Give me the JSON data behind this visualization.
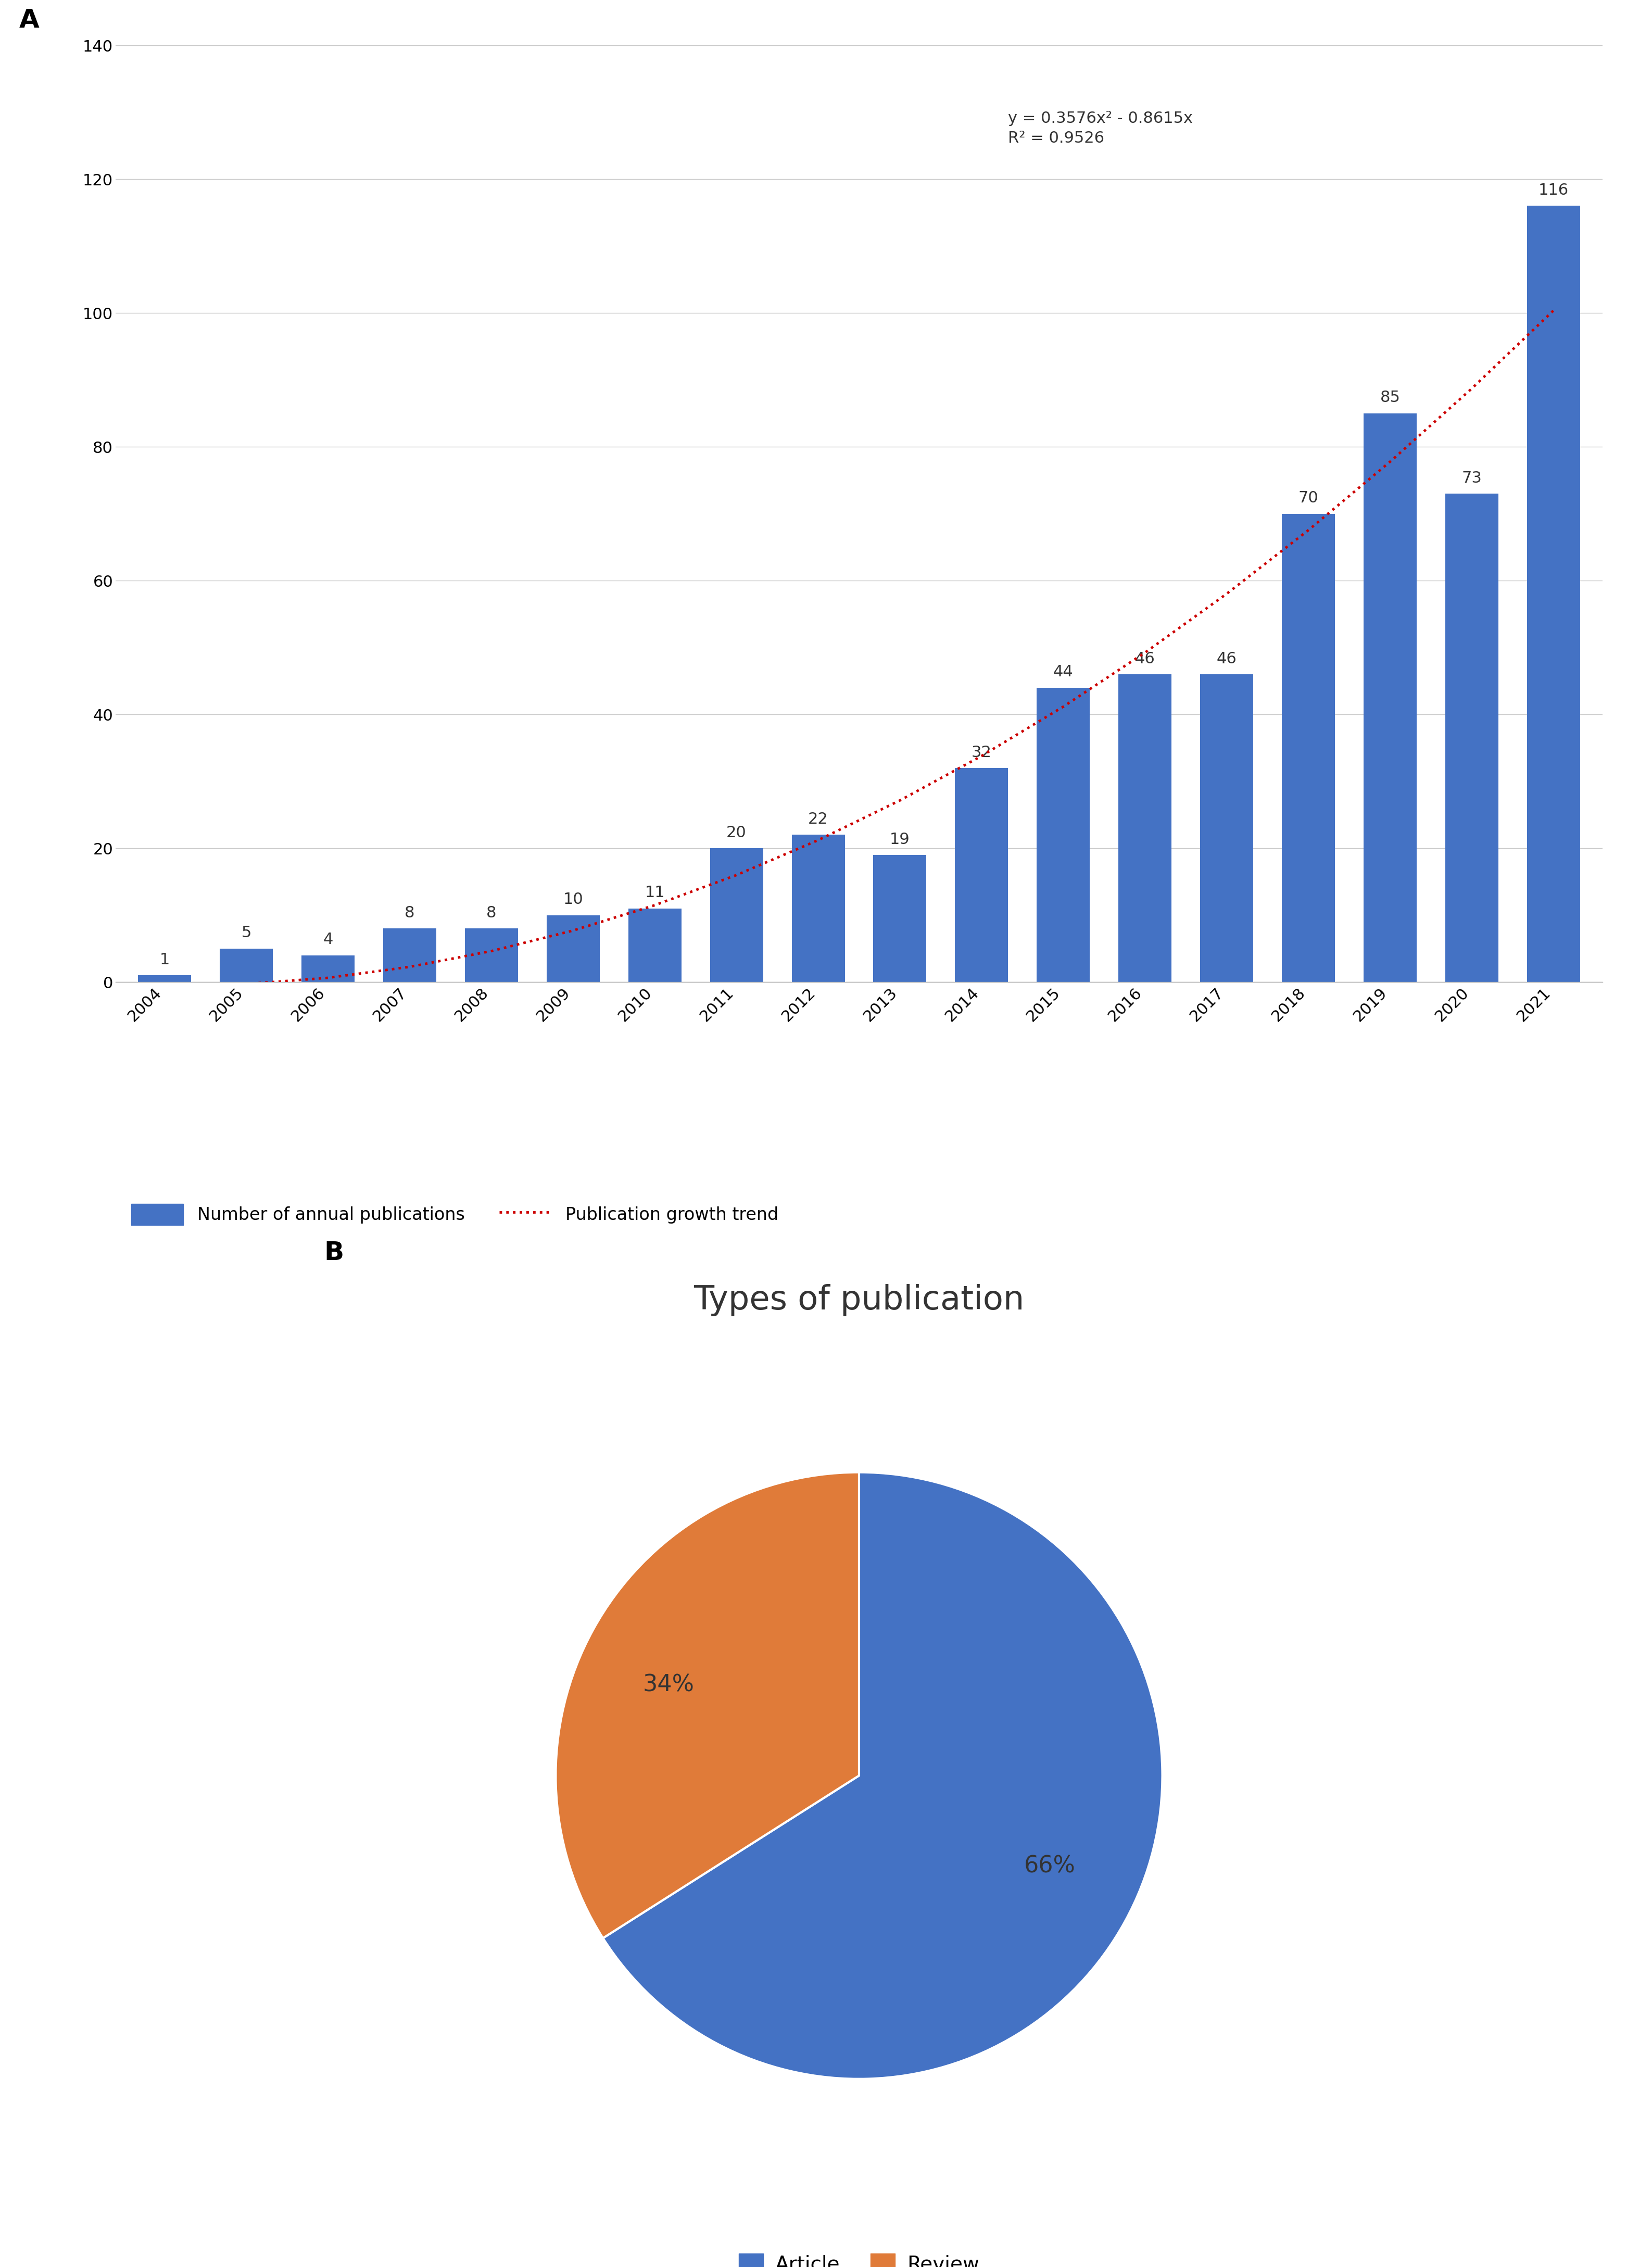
{
  "years": [
    2004,
    2005,
    2006,
    2007,
    2008,
    2009,
    2010,
    2011,
    2012,
    2013,
    2014,
    2015,
    2016,
    2017,
    2018,
    2019,
    2020,
    2021
  ],
  "values": [
    1,
    5,
    4,
    8,
    8,
    10,
    11,
    20,
    22,
    19,
    32,
    44,
    46,
    46,
    70,
    85,
    73,
    116
  ],
  "bar_color": "#4472C4",
  "trend_color": "#CC0000",
  "trend_equation": "y = 0.3576x² - 0.8615x",
  "trend_r2": "R² = 0.9526",
  "ylim": [
    0,
    140
  ],
  "yticks": [
    0,
    20,
    40,
    60,
    80,
    100,
    120,
    140
  ],
  "bar_label_fontsize": 22,
  "tick_fontsize": 22,
  "equation_fontsize": 22,
  "legend_fontsize": 24,
  "panel_label_fontsize": 36,
  "pie_title": "Types of publication",
  "pie_title_fontsize": 46,
  "pie_values": [
    66,
    34
  ],
  "pie_labels": [
    "66%",
    "34%"
  ],
  "pie_colors": [
    "#4472C4",
    "#E07B39"
  ],
  "pie_legend_labels": [
    "Article",
    "Review"
  ],
  "pie_legend_fontsize": 28,
  "pie_pct_fontsize": 32,
  "bar_legend_label": "Number of annual publications",
  "trend_legend_label": "Publication growth trend",
  "background_color": "#FFFFFF",
  "grid_color": "#C8C8C8"
}
